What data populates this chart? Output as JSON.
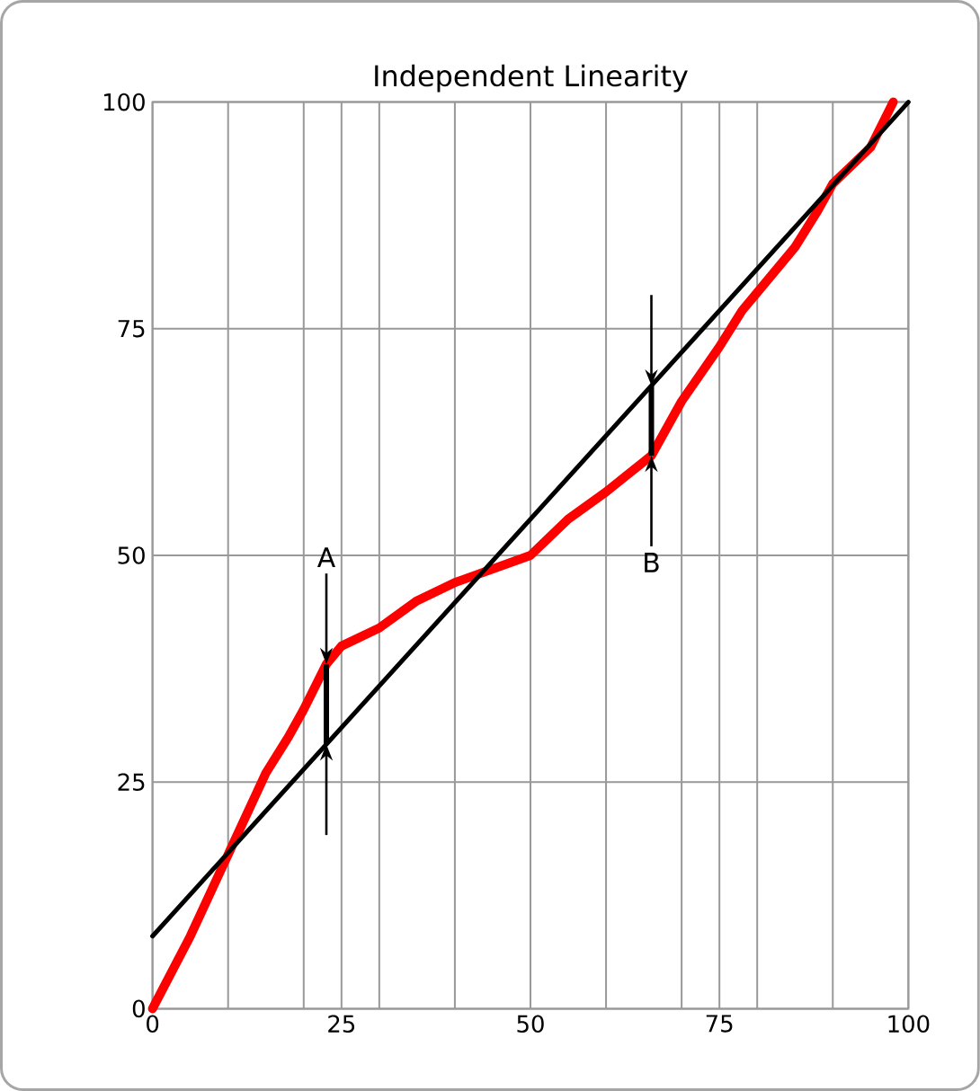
{
  "chart_data": {
    "type": "line",
    "title": "Independent Linearity",
    "xlim": [
      0,
      100
    ],
    "ylim": [
      0,
      100
    ],
    "xticks": [
      0,
      {
        "value": 10,
        "label": null
      },
      {
        "value": 20,
        "label": null
      },
      25,
      {
        "value": 30,
        "label": null
      },
      {
        "value": 40,
        "label": null
      },
      50,
      {
        "value": 60,
        "label": null
      },
      {
        "value": 70,
        "label": null
      },
      75,
      {
        "value": 80,
        "label": null
      },
      {
        "value": 90,
        "label": null
      },
      100
    ],
    "yticks": [
      0,
      25,
      50,
      75,
      100
    ],
    "grid": true,
    "marker": "none",
    "line_style": "solid",
    "series": [
      {
        "color": "#ff0000",
        "x": [
          0,
          5,
          10,
          15,
          18,
          20,
          23,
          25,
          30,
          35,
          40,
          45,
          50,
          55,
          60,
          63,
          66,
          70,
          75,
          78,
          80,
          85,
          88,
          90,
          95,
          98
        ],
        "values": [
          0,
          8,
          17,
          26,
          30,
          33,
          38,
          40,
          42,
          45,
          47,
          48.5,
          50,
          54,
          57,
          59,
          61,
          67,
          73,
          77,
          79,
          84,
          88,
          91,
          95,
          100
        ]
      },
      {
        "color": "#000000",
        "x": [
          0,
          100
        ],
        "values": [
          8,
          100
        ]
      }
    ],
    "annotations": [
      {
        "text": "A",
        "x": 23,
        "y": 38
      },
      {
        "text": "B",
        "x": 66,
        "y": 61
      }
    ]
  }
}
